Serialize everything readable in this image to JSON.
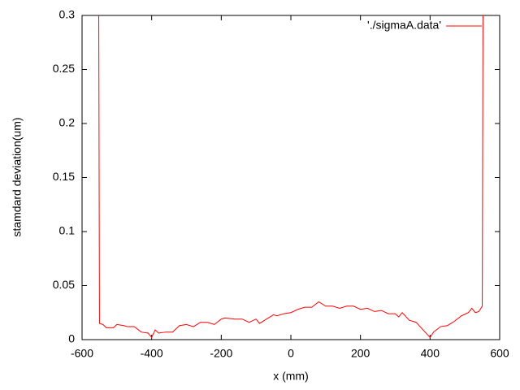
{
  "chart_data": {
    "type": "line",
    "xlabel": "x (mm)",
    "ylabel": "stamdard deviation(um)",
    "x": [
      -552,
      -550,
      -540,
      -530,
      -510,
      -500,
      -480,
      -470,
      -450,
      -430,
      -410,
      -400,
      -390,
      -380,
      -360,
      -340,
      -320,
      -300,
      -280,
      -260,
      -240,
      -220,
      -200,
      -190,
      -160,
      -140,
      -120,
      -100,
      -90,
      -70,
      -50,
      -40,
      -20,
      0,
      20,
      40,
      60,
      80,
      100,
      120,
      140,
      160,
      180,
      200,
      220,
      240,
      260,
      280,
      300,
      310,
      320,
      340,
      360,
      380,
      400,
      410,
      430,
      450,
      470,
      490,
      510,
      520,
      530,
      540,
      550,
      552
    ],
    "series": [
      {
        "name": "'./sigmaA.data'",
        "color": "#ff0000",
        "values": [
          0.3,
          0.015,
          0.014,
          0.011,
          0.011,
          0.014,
          0.013,
          0.012,
          0.012,
          0.007,
          0.006,
          0.002,
          0.009,
          0.006,
          0.007,
          0.007,
          0.013,
          0.014,
          0.012,
          0.016,
          0.016,
          0.014,
          0.019,
          0.02,
          0.019,
          0.019,
          0.016,
          0.019,
          0.015,
          0.019,
          0.023,
          0.022,
          0.024,
          0.025,
          0.028,
          0.03,
          0.03,
          0.035,
          0.031,
          0.031,
          0.029,
          0.031,
          0.031,
          0.028,
          0.029,
          0.026,
          0.027,
          0.024,
          0.024,
          0.021,
          0.025,
          0.018,
          0.016,
          0.009,
          0.002,
          0.007,
          0.012,
          0.013,
          0.017,
          0.022,
          0.025,
          0.029,
          0.025,
          0.026,
          0.031,
          0.3
        ]
      }
    ],
    "xlim": [
      -600,
      600
    ],
    "xticks": [
      -600,
      -400,
      -200,
      0,
      200,
      400,
      600
    ],
    "ylim": [
      0,
      0.3
    ],
    "yticks": [
      0,
      0.05,
      0.1,
      0.15,
      0.2,
      0.25,
      0.3
    ],
    "grid": false,
    "legend": "top right"
  }
}
